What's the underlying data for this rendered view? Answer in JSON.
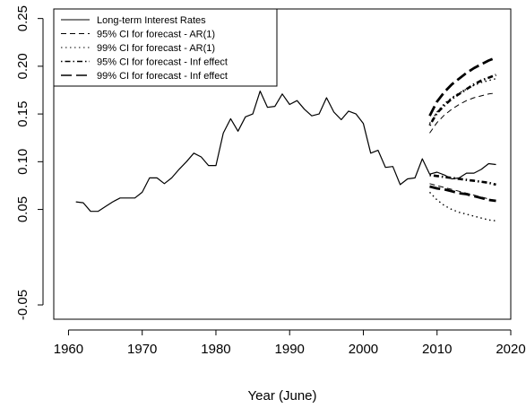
{
  "chart_data": {
    "type": "line",
    "xlabel": "Year (June)",
    "ylabel": "",
    "xlim": [
      1958,
      2020
    ],
    "ylim": [
      -0.065,
      0.26
    ],
    "x_ticks": [
      1960,
      1970,
      1980,
      1990,
      2000,
      2010,
      2020
    ],
    "x_tick_labels": [
      "1960",
      "1970",
      "1980",
      "1990",
      "2000",
      "2010",
      "2020"
    ],
    "y_ticks": [
      -0.05,
      0.05,
      0.1,
      0.15,
      0.2,
      0.25
    ],
    "y_tick_labels": [
      "-0.05",
      "0.05",
      "0.10",
      "0.15",
      "0.20",
      "0.25"
    ],
    "grid": false,
    "legend_position": "top-left",
    "legend": [
      {
        "label": "Long-term Interest Rates",
        "style": "solid"
      },
      {
        "label": "95% CI for forecast - AR(1)",
        "style": "dashed"
      },
      {
        "label": "99% CI for forecast - AR(1)",
        "style": "dotted"
      },
      {
        "label": "95% CI for forecast - Inf effect",
        "style": "dashdot"
      },
      {
        "label": "99% CI for forecast - Inf effect",
        "style": "longdash"
      }
    ],
    "series": [
      {
        "name": "Long-term Interest Rates",
        "style": "solid",
        "x": [
          1961,
          1962,
          1963,
          1964,
          1965,
          1966,
          1967,
          1968,
          1969,
          1970,
          1971,
          1972,
          1973,
          1974,
          1975,
          1976,
          1977,
          1978,
          1979,
          1980,
          1981,
          1982,
          1983,
          1984,
          1985,
          1986,
          1987,
          1988,
          1989,
          1990,
          1991,
          1992,
          1993,
          1994,
          1995,
          1996,
          1997,
          1998,
          1999,
          2000,
          2001,
          2002,
          2003,
          2004,
          2005,
          2006,
          2007,
          2008,
          2009,
          2010,
          2011,
          2012,
          2013,
          2014,
          2015,
          2016,
          2017,
          2018
        ],
        "values": [
          0.058,
          0.057,
          0.048,
          0.048,
          0.053,
          0.058,
          0.062,
          0.062,
          0.062,
          0.068,
          0.083,
          0.083,
          0.077,
          0.083,
          0.092,
          0.1,
          0.109,
          0.105,
          0.096,
          0.096,
          0.13,
          0.145,
          0.132,
          0.147,
          0.15,
          0.174,
          0.157,
          0.158,
          0.171,
          0.16,
          0.164,
          0.155,
          0.148,
          0.15,
          0.167,
          0.152,
          0.144,
          0.153,
          0.15,
          0.14,
          0.109,
          0.112,
          0.094,
          0.095,
          0.076,
          0.082,
          0.083,
          0.103,
          0.087,
          0.089,
          0.086,
          0.082,
          0.083,
          0.088,
          0.088,
          0.092,
          0.098,
          0.097
        ]
      },
      {
        "name": "95% CI for forecast - AR(1)",
        "style": "dashed",
        "x": [
          2009,
          2010,
          2011,
          2012,
          2013,
          2014,
          2015,
          2016,
          2017,
          2018
        ],
        "upper": [
          0.13,
          0.141,
          0.149,
          0.155,
          0.16,
          0.164,
          0.167,
          0.169,
          0.171,
          0.172
        ],
        "lower": [
          0.077,
          0.075,
          0.073,
          0.071,
          0.069,
          0.067,
          0.065,
          0.063,
          0.061,
          0.059
        ]
      },
      {
        "name": "99% CI for forecast - AR(1)",
        "style": "dotted",
        "x": [
          2009,
          2010,
          2011,
          2012,
          2013,
          2014,
          2015,
          2016,
          2017,
          2018
        ],
        "upper": [
          0.14,
          0.152,
          0.161,
          0.167,
          0.172,
          0.176,
          0.18,
          0.183,
          0.185,
          0.187
        ],
        "lower": [
          0.068,
          0.06,
          0.054,
          0.05,
          0.047,
          0.045,
          0.043,
          0.041,
          0.039,
          0.038
        ]
      },
      {
        "name": "95% CI for forecast - Inf effect",
        "style": "dashdot",
        "x": [
          2009,
          2010,
          2011,
          2012,
          2013,
          2014,
          2015,
          2016,
          2017,
          2018
        ],
        "upper": [
          0.138,
          0.151,
          0.159,
          0.166,
          0.171,
          0.176,
          0.181,
          0.185,
          0.188,
          0.191
        ],
        "lower": [
          0.086,
          0.085,
          0.084,
          0.083,
          0.082,
          0.081,
          0.08,
          0.079,
          0.078,
          0.076
        ]
      },
      {
        "name": "99% CI for forecast - Inf effect",
        "style": "longdash",
        "x": [
          2009,
          2010,
          2011,
          2012,
          2013,
          2014,
          2015,
          2016,
          2017,
          2018
        ],
        "upper": [
          0.148,
          0.163,
          0.173,
          0.181,
          0.187,
          0.193,
          0.198,
          0.202,
          0.206,
          0.209
        ],
        "lower": [
          0.074,
          0.072,
          0.071,
          0.069,
          0.067,
          0.066,
          0.064,
          0.062,
          0.06,
          0.059
        ]
      }
    ]
  }
}
